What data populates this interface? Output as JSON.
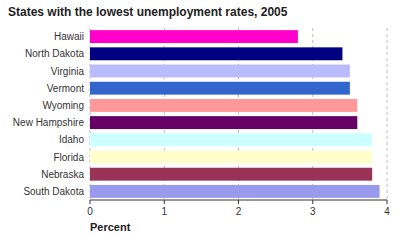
{
  "chart_data": {
    "type": "bar",
    "orientation": "horizontal",
    "title": "States with the lowest unemployment rates, 2005",
    "categories": [
      "Hawaii",
      "North Dakota",
      "Virginia",
      "Vermont",
      "Wyoming",
      "New Hampshire",
      "Idaho",
      "Florida",
      "Nebraska",
      "South Dakota"
    ],
    "values": [
      2.8,
      3.4,
      3.5,
      3.5,
      3.6,
      3.6,
      3.8,
      3.8,
      3.8,
      3.9
    ],
    "colors": [
      "#ff00cc",
      "#000080",
      "#bbbbff",
      "#3366cc",
      "#ff9999",
      "#660066",
      "#ccffff",
      "#ffffcc",
      "#993355",
      "#9999ee"
    ],
    "xlabel": "Percent",
    "xlim": [
      0,
      4
    ],
    "xticks": [
      0,
      1,
      2,
      3,
      4
    ],
    "grid": true
  }
}
